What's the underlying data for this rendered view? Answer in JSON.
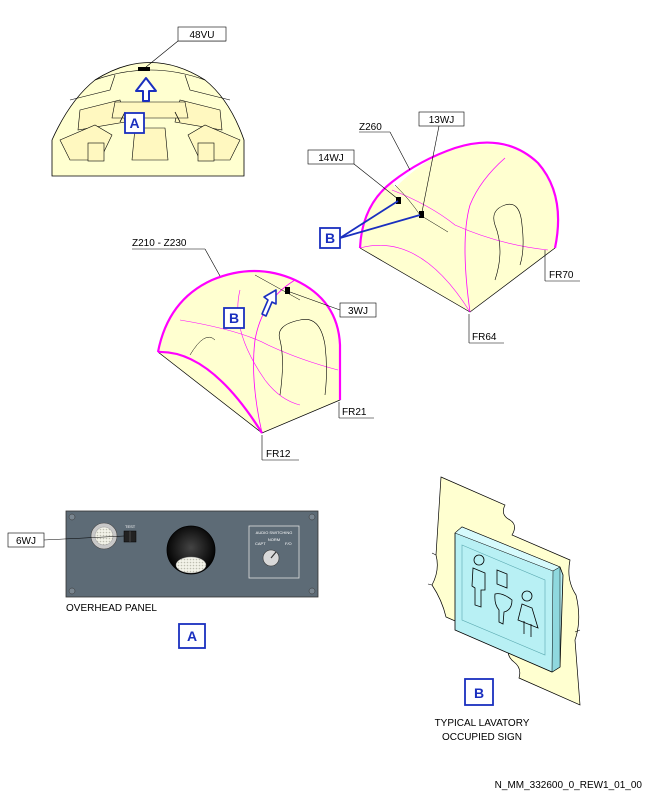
{
  "labels": {
    "vu48": "48VU",
    "z260": "Z260",
    "wj13": "13WJ",
    "wj14": "14WJ",
    "z210": "Z210 - Z230",
    "wj3": "3WJ",
    "fr70": "FR70",
    "fr64": "FR64",
    "fr21": "FR21",
    "fr12": "FR12",
    "wj6": "6WJ"
  },
  "callouts": {
    "a": "A",
    "b": "B"
  },
  "panel": {
    "caption": "OVERHEAD PANEL",
    "test_label": "TEST",
    "audio_title": "AUDIO SWITCHING",
    "audio_norm": "NORM",
    "audio_left": "CAPT",
    "audio_right": "F/O"
  },
  "sign": {
    "caption_line1": "TYPICAL LAVATORY",
    "caption_line2": "OCCUPIED SIGN"
  },
  "footer": {
    "reference": "N_MM_332600_0_REW1_01_00"
  },
  "colors": {
    "fuselage_fill": "#ffffd0",
    "outline_magenta": "#ff00ff",
    "callout_blue": "#1a2fbf",
    "panel_gray": "#5d6b76",
    "sign_cyan": "#b8f0f4"
  }
}
